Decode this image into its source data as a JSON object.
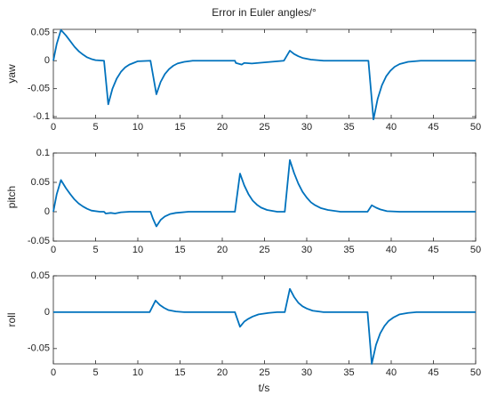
{
  "chart_data": [
    {
      "type": "line",
      "title": "Error in Euler angles/°",
      "ylabel": "yaw",
      "x": [
        0,
        0.4,
        0.9,
        1.5,
        2,
        2.5,
        3,
        3.5,
        4,
        4.5,
        5,
        6,
        6.5,
        7,
        7.5,
        8,
        8.5,
        9,
        9.5,
        10,
        11.5,
        12.2,
        12.7,
        13.2,
        13.7,
        14.2,
        14.7,
        15.5,
        16.5,
        21.5,
        21.6,
        22.3,
        22.6,
        23.5,
        25,
        27.3,
        28,
        28.5,
        29,
        29.5,
        30.5,
        32,
        37.3,
        37.9,
        38.4,
        38.9,
        39.4,
        39.9,
        40.4,
        41,
        42,
        43.5,
        50
      ],
      "values": [
        0,
        0.03,
        0.055,
        0.045,
        0.035,
        0.025,
        0.017,
        0.011,
        0.006,
        0.003,
        0.001,
        0,
        -0.078,
        -0.05,
        -0.032,
        -0.02,
        -0.012,
        -0.007,
        -0.004,
        -0.001,
        0,
        -0.06,
        -0.038,
        -0.024,
        -0.015,
        -0.009,
        -0.005,
        -0.002,
        0,
        0,
        -0.004,
        -0.007,
        -0.004,
        -0.005,
        -0.003,
        0,
        0.018,
        0.012,
        0.008,
        0.005,
        0.002,
        0,
        0,
        -0.105,
        -0.068,
        -0.044,
        -0.028,
        -0.018,
        -0.011,
        -0.006,
        -0.002,
        0,
        0
      ],
      "color": "#0072bd",
      "xlim": [
        0,
        50
      ],
      "xticks": [
        0,
        5,
        10,
        15,
        20,
        25,
        30,
        35,
        40,
        45,
        50
      ],
      "ylim": [
        -0.103,
        0.056
      ],
      "yticks": [
        -0.1,
        -0.05,
        0,
        0.05
      ]
    },
    {
      "type": "line",
      "ylabel": "pitch",
      "x": [
        0,
        0.4,
        0.9,
        1.5,
        2,
        2.5,
        3,
        3.5,
        4,
        4.5,
        5.5,
        6,
        6.2,
        6.8,
        7.3,
        8,
        9,
        11.5,
        11.8,
        12.2,
        12.7,
        13.2,
        13.8,
        14.5,
        16,
        21.5,
        22.1,
        22.6,
        23.1,
        23.6,
        24.1,
        24.6,
        25.3,
        26.5,
        27.4,
        28,
        28.5,
        29,
        29.5,
        30,
        30.5,
        31,
        31.7,
        32.5,
        34,
        37.2,
        37.7,
        38.2,
        38.7,
        39.5,
        41,
        50
      ],
      "values": [
        0,
        0.03,
        0.054,
        0.04,
        0.03,
        0.021,
        0.014,
        0.009,
        0.005,
        0.002,
        0,
        0,
        -0.003,
        -0.002,
        -0.003,
        -0.001,
        0,
        0,
        -0.012,
        -0.025,
        -0.014,
        -0.008,
        -0.004,
        -0.002,
        0,
        0,
        0.065,
        0.045,
        0.03,
        0.019,
        0.012,
        0.007,
        0.003,
        0,
        0,
        0.088,
        0.066,
        0.048,
        0.034,
        0.024,
        0.016,
        0.011,
        0.006,
        0.003,
        0,
        0,
        0.011,
        0.007,
        0.004,
        0.001,
        0,
        0
      ],
      "color": "#0072bd",
      "xlim": [
        0,
        50
      ],
      "xticks": [
        0,
        5,
        10,
        15,
        20,
        25,
        30,
        35,
        40,
        45,
        50
      ],
      "ylim": [
        -0.05,
        0.1
      ],
      "yticks": [
        -0.05,
        0,
        0.05,
        0.1
      ]
    },
    {
      "type": "line",
      "ylabel": "roll",
      "xlabel": "t/s",
      "x": [
        0,
        11.4,
        12.1,
        12.6,
        13.1,
        13.6,
        14.5,
        15.5,
        21.5,
        22.1,
        22.6,
        23.1,
        23.6,
        24.3,
        25.5,
        26.5,
        27.4,
        28,
        28.5,
        29,
        29.5,
        30,
        30.7,
        32,
        37.2,
        37.7,
        38.2,
        38.7,
        39.2,
        39.7,
        40.3,
        41,
        42,
        43,
        50
      ],
      "values": [
        0,
        0,
        0.016,
        0.01,
        0.006,
        0.003,
        0.001,
        0,
        0,
        -0.02,
        -0.013,
        -0.009,
        -0.006,
        -0.003,
        -0.001,
        0,
        0,
        0.032,
        0.021,
        0.013,
        0.008,
        0.005,
        0.002,
        0,
        0,
        -0.071,
        -0.045,
        -0.029,
        -0.019,
        -0.012,
        -0.007,
        -0.003,
        -0.001,
        0,
        0
      ],
      "color": "#0072bd",
      "xlim": [
        0,
        50
      ],
      "xticks": [
        0,
        5,
        10,
        15,
        20,
        25,
        30,
        35,
        40,
        45,
        50
      ],
      "ylim": [
        -0.071,
        0.05
      ],
      "yticks": [
        -0.05,
        0,
        0.05
      ]
    }
  ]
}
